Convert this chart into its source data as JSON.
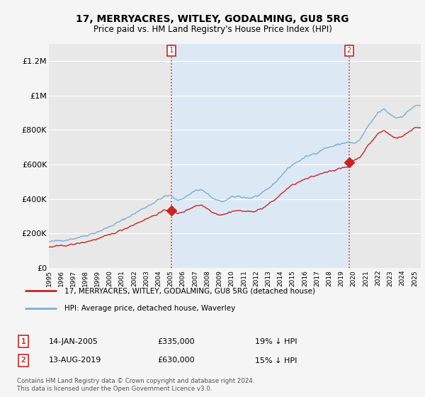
{
  "title": "17, MERRYACRES, WITLEY, GODALMING, GU8 5RG",
  "subtitle": "Price paid vs. HM Land Registry's House Price Index (HPI)",
  "ylim": [
    0,
    1300000
  ],
  "yticks": [
    0,
    200000,
    400000,
    600000,
    800000,
    1000000,
    1200000
  ],
  "ytick_labels": [
    "£0",
    "£200K",
    "£400K",
    "£600K",
    "£800K",
    "£1M",
    "£1.2M"
  ],
  "background_color": "#f5f5f5",
  "plot_bg_color": "#e8e8e8",
  "plot_between_color": "#dce9f5",
  "hpi_color": "#7aadd4",
  "price_color": "#cc2222",
  "transaction1_date": 2005.04,
  "transaction1_price": 335000,
  "transaction2_date": 2019.62,
  "transaction2_price": 630000,
  "legend_label_price": "17, MERRYACRES, WITLEY, GODALMING, GU8 5RG (detached house)",
  "legend_label_hpi": "HPI: Average price, detached house, Waverley",
  "info1_date": "14-JAN-2005",
  "info1_price": "£335,000",
  "info1_hpi": "19% ↓ HPI",
  "info2_date": "13-AUG-2019",
  "info2_price": "£630,000",
  "info2_hpi": "15% ↓ HPI",
  "footer": "Contains HM Land Registry data © Crown copyright and database right 2024.\nThis data is licensed under the Open Government Licence v3.0.",
  "xmin": 1995,
  "xmax": 2025.5
}
